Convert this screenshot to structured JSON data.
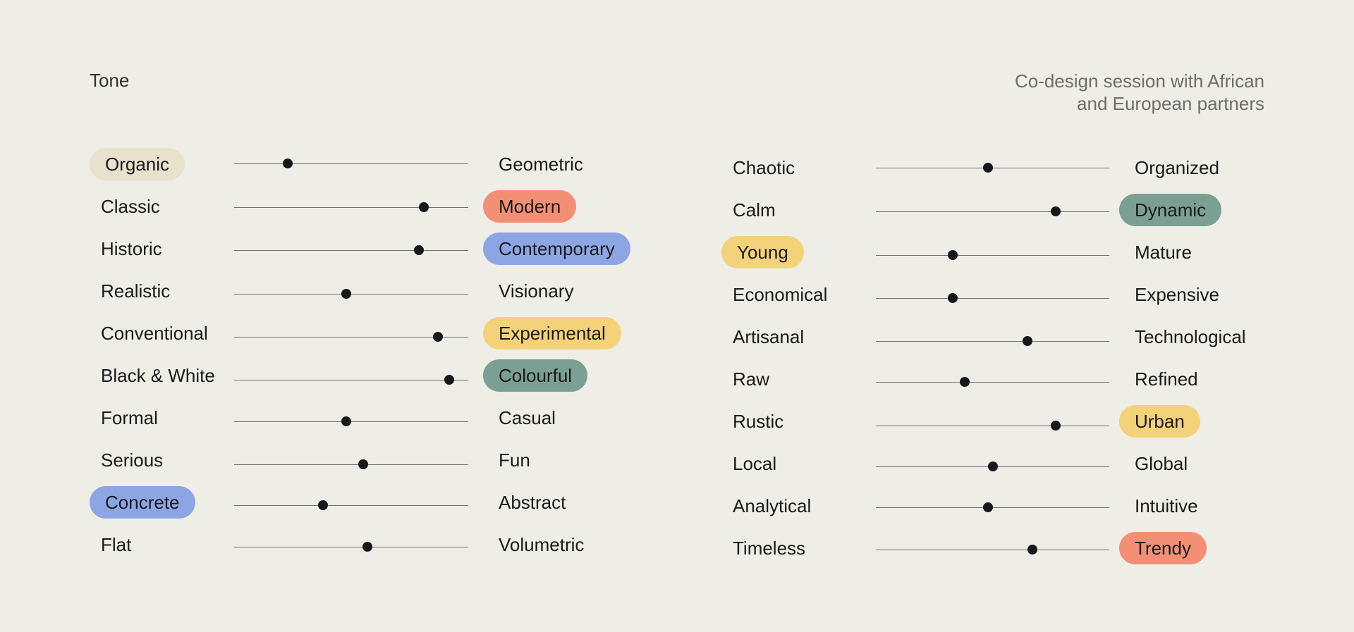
{
  "header": {
    "title": "Tone",
    "subtitle_line1": "Co-design session with African",
    "subtitle_line2": "and European partners"
  },
  "colors": {
    "background": "#EEEDE6",
    "beige": "#E8E2CD",
    "red": "#F28F74",
    "blue": "#8DA6E3",
    "yellow": "#F4D27A",
    "green": "#7BA093"
  },
  "left_scales": [
    {
      "left": "Organic",
      "right": "Geometric",
      "value": 0.23,
      "highlight": "left",
      "color": "beige"
    },
    {
      "left": "Classic",
      "right": "Modern",
      "value": 0.81,
      "highlight": "right",
      "color": "red"
    },
    {
      "left": "Historic",
      "right": "Contemporary",
      "value": 0.79,
      "highlight": "right",
      "color": "blue"
    },
    {
      "left": "Realistic",
      "right": "Visionary",
      "value": 0.48,
      "highlight": "",
      "color": ""
    },
    {
      "left": "Conventional",
      "right": "Experimental",
      "value": 0.87,
      "highlight": "right",
      "color": "yellow"
    },
    {
      "left": "Black & White",
      "right": "Colourful",
      "value": 0.92,
      "highlight": "right",
      "color": "green"
    },
    {
      "left": "Formal",
      "right": "Casual",
      "value": 0.48,
      "highlight": "",
      "color": ""
    },
    {
      "left": "Serious",
      "right": "Fun",
      "value": 0.55,
      "highlight": "",
      "color": ""
    },
    {
      "left": "Concrete",
      "right": "Abstract",
      "value": 0.38,
      "highlight": "left",
      "color": "blue"
    },
    {
      "left": "Flat",
      "right": "Volumetric",
      "value": 0.57,
      "highlight": "",
      "color": ""
    }
  ],
  "right_scales": [
    {
      "left": "Chaotic",
      "right": "Organized",
      "value": 0.48,
      "highlight": "",
      "color": ""
    },
    {
      "left": "Calm",
      "right": "Dynamic",
      "value": 0.77,
      "highlight": "right",
      "color": "green"
    },
    {
      "left": "Young",
      "right": "Mature",
      "value": 0.33,
      "highlight": "left",
      "color": "yellow"
    },
    {
      "left": "Economical",
      "right": "Expensive",
      "value": 0.33,
      "highlight": "",
      "color": ""
    },
    {
      "left": "Artisanal",
      "right": "Technological",
      "value": 0.65,
      "highlight": "",
      "color": ""
    },
    {
      "left": "Raw",
      "right": "Refined",
      "value": 0.38,
      "highlight": "",
      "color": ""
    },
    {
      "left": "Rustic",
      "right": "Urban",
      "value": 0.77,
      "highlight": "right",
      "color": "yellow"
    },
    {
      "left": "Local",
      "right": "Global",
      "value": 0.5,
      "highlight": "",
      "color": ""
    },
    {
      "left": "Analytical",
      "right": "Intuitive",
      "value": 0.48,
      "highlight": "",
      "color": ""
    },
    {
      "left": "Timeless",
      "right": "Trendy",
      "value": 0.67,
      "highlight": "right",
      "color": "red"
    }
  ]
}
